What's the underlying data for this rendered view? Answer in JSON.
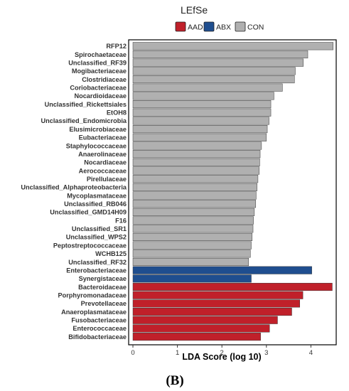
{
  "chart_data": {
    "type": "bar",
    "orientation": "horizontal",
    "title": "LEfSe",
    "xlabel": "LDA Score (log 10)",
    "ylabel": "",
    "xlim": [
      0,
      4.6
    ],
    "xticks": [
      "0",
      "1",
      "2",
      "3",
      "4"
    ],
    "grid": false,
    "legend_position": "top",
    "legend": [
      {
        "name": "AAD",
        "color": "#c0202a"
      },
      {
        "name": "ABX",
        "color": "#1f4e8f"
      },
      {
        "name": "CON",
        "color": "#b0b0b0"
      }
    ],
    "bars": [
      {
        "label": "RFP12",
        "value": 4.5,
        "group": "CON"
      },
      {
        "label": "Spirochaetaceae",
        "value": 3.93,
        "group": "CON"
      },
      {
        "label": "Unclassified_RF39",
        "value": 3.83,
        "group": "CON"
      },
      {
        "label": "Mogibacteriaceae",
        "value": 3.65,
        "group": "CON"
      },
      {
        "label": "Clostridiaceae",
        "value": 3.63,
        "group": "CON"
      },
      {
        "label": "Coriobacteriaceae",
        "value": 3.36,
        "group": "CON"
      },
      {
        "label": "Nocardioidaceae",
        "value": 3.17,
        "group": "CON"
      },
      {
        "label": "Unclassified_Rickettsiales",
        "value": 3.1,
        "group": "CON"
      },
      {
        "label": "EtOH8",
        "value": 3.1,
        "group": "CON"
      },
      {
        "label": "Unclassified_Endomicrobia",
        "value": 3.06,
        "group": "CON"
      },
      {
        "label": "Elusimicrobiaceae",
        "value": 3.02,
        "group": "CON"
      },
      {
        "label": "Eubacteriaceae",
        "value": 3.0,
        "group": "CON"
      },
      {
        "label": "Staphylococcaceae",
        "value": 2.89,
        "group": "CON"
      },
      {
        "label": "Anaerolinaceae",
        "value": 2.86,
        "group": "CON"
      },
      {
        "label": "Nocardiaceae",
        "value": 2.85,
        "group": "CON"
      },
      {
        "label": "Aerococcaceae",
        "value": 2.84,
        "group": "CON"
      },
      {
        "label": "Pirellulaceae",
        "value": 2.81,
        "group": "CON"
      },
      {
        "label": "Unclassified_Alphaproteobacteria",
        "value": 2.79,
        "group": "CON"
      },
      {
        "label": "Mycoplasmataceae",
        "value": 2.77,
        "group": "CON"
      },
      {
        "label": "Unclassified_RB046",
        "value": 2.76,
        "group": "CON"
      },
      {
        "label": "Unclassified_GMD14H09",
        "value": 2.73,
        "group": "CON"
      },
      {
        "label": "F16",
        "value": 2.71,
        "group": "CON"
      },
      {
        "label": "Unclassified_SR1",
        "value": 2.7,
        "group": "CON"
      },
      {
        "label": "Unclassified_WPS2",
        "value": 2.68,
        "group": "CON"
      },
      {
        "label": "Peptostreptococcaceae",
        "value": 2.66,
        "group": "CON"
      },
      {
        "label": "WCHB125",
        "value": 2.64,
        "group": "CON"
      },
      {
        "label": "Unclassified_RF32",
        "value": 2.6,
        "group": "CON"
      },
      {
        "label": "Enterobacteriaceae",
        "value": 4.02,
        "group": "ABX"
      },
      {
        "label": "Synergistaceae",
        "value": 2.66,
        "group": "ABX"
      },
      {
        "label": "Bacteroidaceae",
        "value": 4.48,
        "group": "AAD"
      },
      {
        "label": "Porphyromonadaceae",
        "value": 3.82,
        "group": "AAD"
      },
      {
        "label": "Prevotellaceae",
        "value": 3.75,
        "group": "AAD"
      },
      {
        "label": "Anaeroplasmataceae",
        "value": 3.57,
        "group": "AAD"
      },
      {
        "label": "Fusobacteriaceae",
        "value": 3.25,
        "group": "AAD"
      },
      {
        "label": "Enterococcaceae",
        "value": 3.07,
        "group": "AAD"
      },
      {
        "label": "Bifidobacteriaceae",
        "value": 2.87,
        "group": "AAD"
      }
    ]
  },
  "panel_label": "(B)"
}
